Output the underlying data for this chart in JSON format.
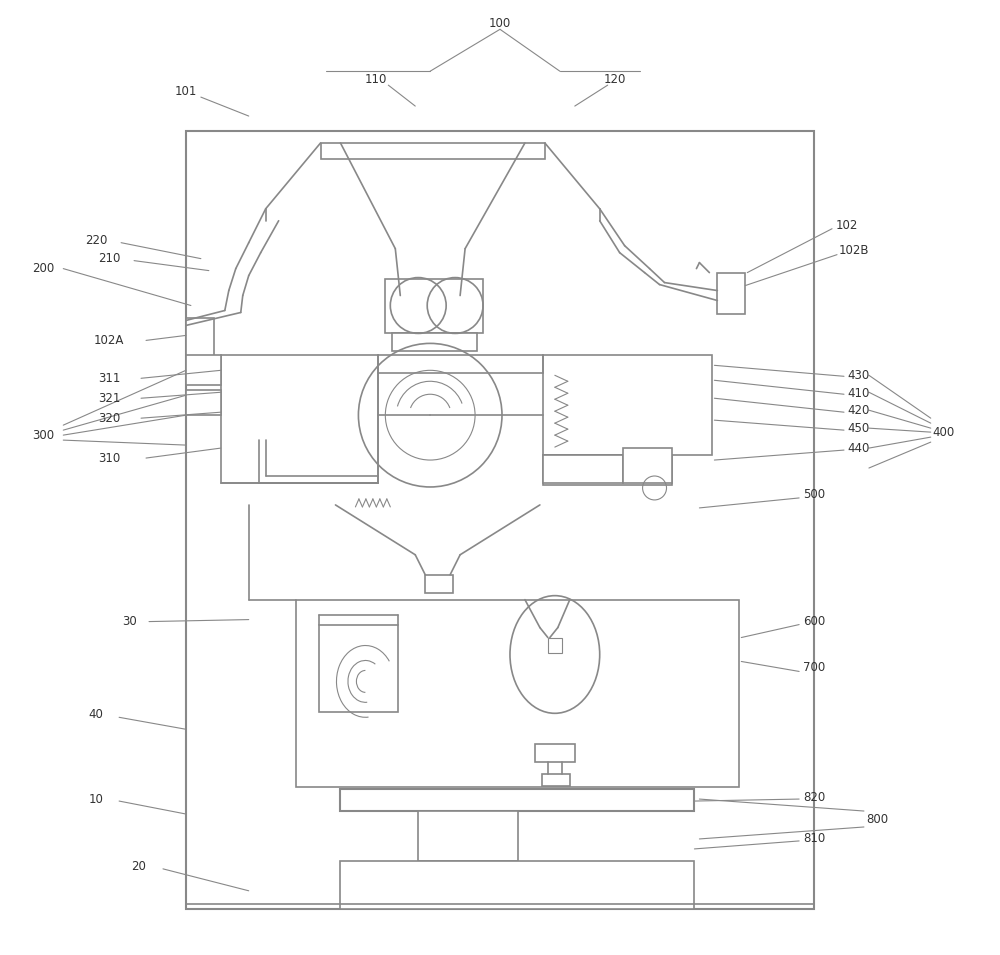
{
  "bg_color": "#ffffff",
  "line_color": "#888888",
  "text_color": "#333333",
  "fig_width": 10.0,
  "fig_height": 9.55,
  "dpi": 100
}
